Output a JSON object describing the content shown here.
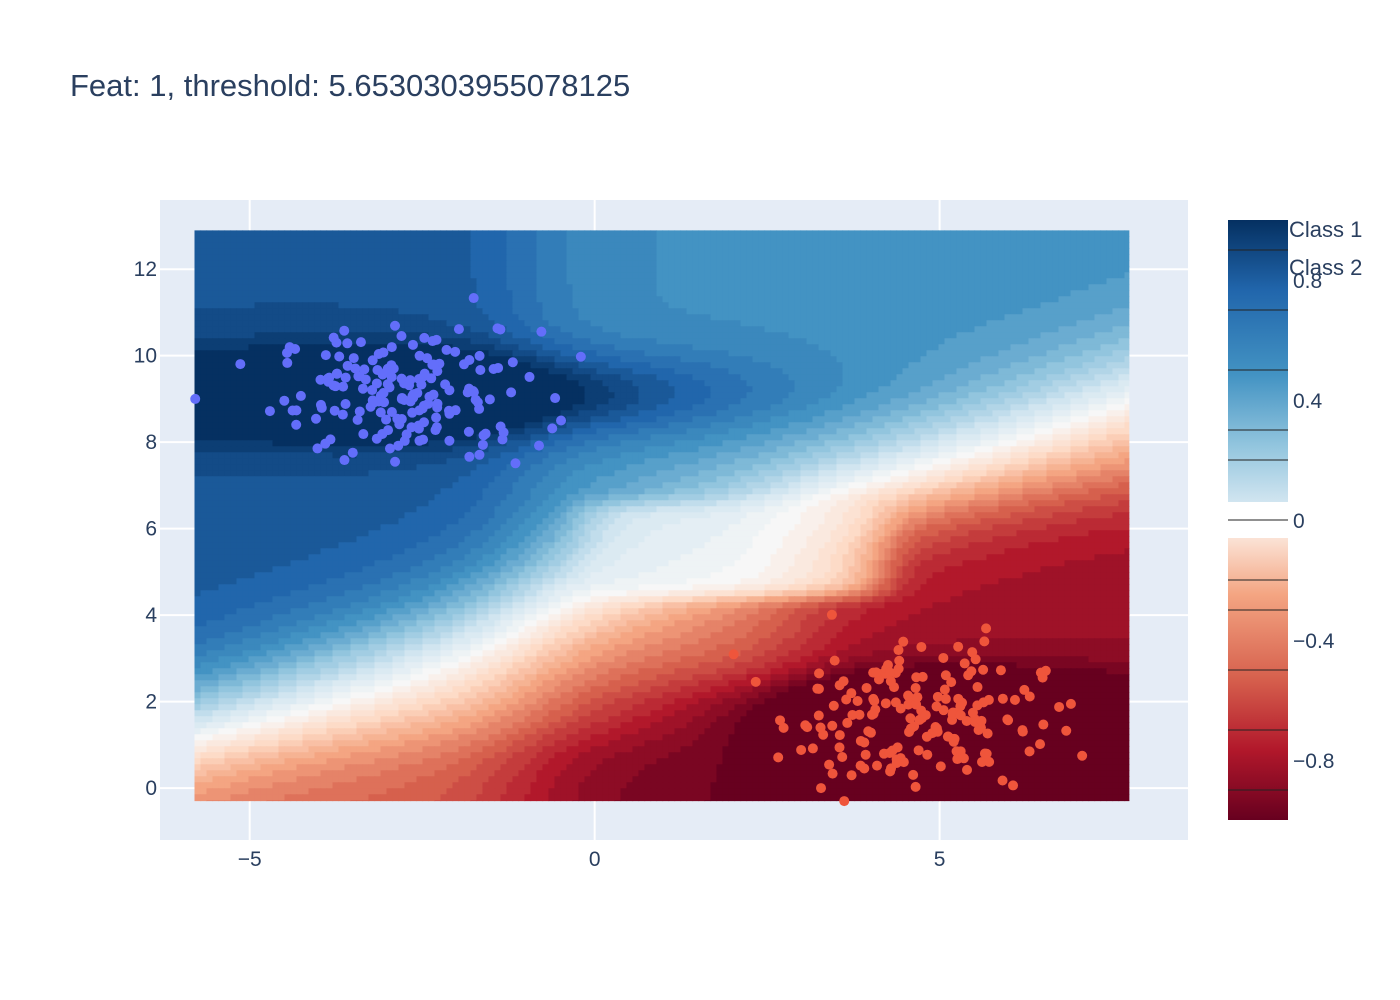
{
  "chart_data": {
    "type": "scatter",
    "title": "Feat: 1, threshold: 5.6530303955078125",
    "xlabel": "",
    "ylabel": "",
    "xlim": [
      -6.3,
      8.6
    ],
    "ylim": [
      -1.2,
      13.6
    ],
    "x_ticks": [
      -5,
      0,
      5
    ],
    "x_tick_labels": [
      "−5",
      "0",
      "5"
    ],
    "y_ticks": [
      0,
      2,
      4,
      6,
      8,
      10,
      12
    ],
    "y_tick_labels": [
      "0",
      "2",
      "4",
      "6",
      "8",
      "10",
      "12"
    ],
    "grid": true,
    "background": {
      "type": "contour",
      "description_of_regions": "diverging red-blue decision surface from -1 to 1",
      "x_range": [
        -5.8,
        7.75
      ],
      "y_range": [
        -0.3,
        12.9
      ],
      "colorscale": "RdBu",
      "zlim": [
        -1,
        1
      ]
    },
    "colorbar": {
      "ticks": [
        0.8,
        0.4,
        0,
        -0.4,
        -0.8
      ],
      "tick_labels": [
        "0.8",
        "0.4",
        "0",
        "−0.4",
        "−0.8"
      ]
    },
    "legend": {
      "placement": "top-right"
    },
    "series": [
      {
        "name": "Class 1",
        "color": "#636efa",
        "center": [
          -2.7,
          9.1
        ],
        "spread": [
          0.95,
          0.75
        ],
        "count": 180,
        "x_range": [
          -5.8,
          -0.2
        ],
        "y_range": [
          7.0,
          12.9
        ]
      },
      {
        "name": "Class 2",
        "color": "#ef553b",
        "center": [
          4.6,
          1.7
        ],
        "spread": [
          0.95,
          0.85
        ],
        "count": 180,
        "x_range": [
          1.9,
          7.8
        ],
        "y_range": [
          -0.3,
          4.6
        ]
      }
    ]
  }
}
